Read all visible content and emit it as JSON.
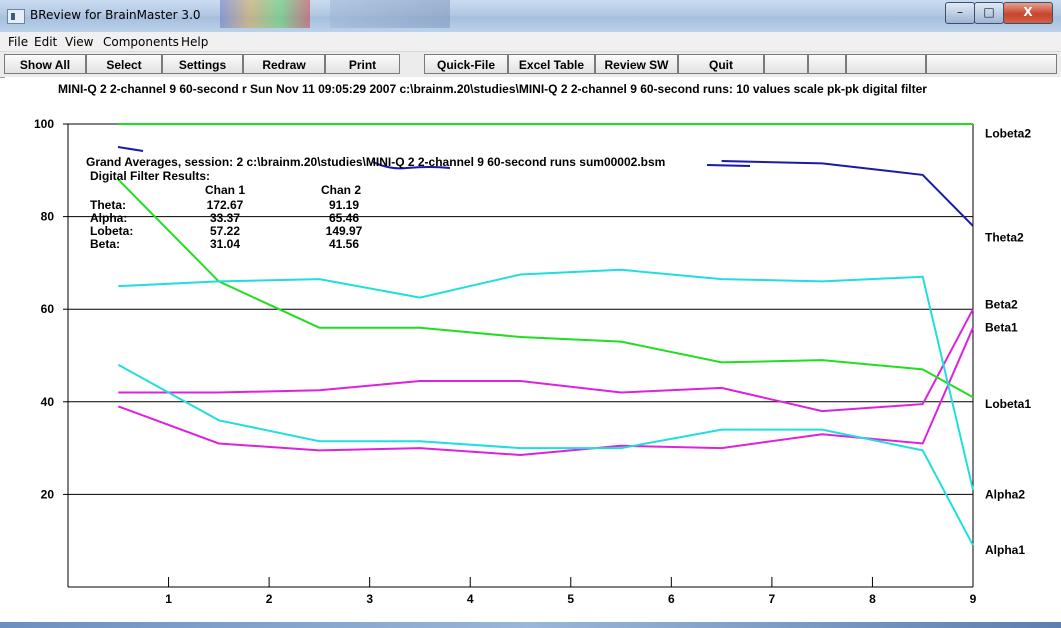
{
  "window": {
    "title": "BReview for BrainMaster 3.0",
    "buttons": {
      "minimize": "–",
      "maximize": "□",
      "close": "X"
    }
  },
  "menu": [
    "File",
    "Edit",
    "View",
    "Components",
    "Help"
  ],
  "toolbar": [
    "Show All",
    "Select",
    "Settings",
    "Redraw",
    "Print",
    "Quick-File",
    "Excel Table",
    "Review SW",
    "Quit",
    "",
    "",
    "",
    ""
  ],
  "header": {
    "text": "MINI-Q 2 2-channel 9 60-second r Sun Nov 11 09:05:29 2007    c:\\brainm.20\\studies\\MINI-Q 2 2-channel 9 60-second runs: 10 values scale pk-pk digital filter"
  },
  "info_box": {
    "line1": "Grand Averages, session: 2 c:\\brainm.20\\studies\\MINI-Q 2 2-channel 9 60-second runs sum00002.bsm",
    "line2": "Digital Filter Results:",
    "col_headers": [
      "Chan 1",
      "Chan 2"
    ],
    "rows": [
      {
        "label": "Theta:",
        "c1": "172.67",
        "c2": "91.19"
      },
      {
        "label": "Alpha:",
        "c1": "33.37",
        "c2": "65.46"
      },
      {
        "label": "Lobeta:",
        "c1": "57.22",
        "c2": "149.97"
      },
      {
        "label": "Beta:",
        "c1": "31.04",
        "c2": "41.56"
      }
    ]
  },
  "colors": {
    "green": "#22dd22",
    "blue": "#1a1aaa",
    "cyan": "#22dddd",
    "magenta": "#dd22dd",
    "grid": "#000000"
  },
  "chart_data": {
    "type": "line",
    "xlim": [
      0,
      9
    ],
    "ylim": [
      0,
      100
    ],
    "x_ticks": [
      "1",
      "2",
      "3",
      "4",
      "5",
      "6",
      "7",
      "8",
      "9"
    ],
    "y_ticks": [
      "20",
      "40",
      "60",
      "80",
      "100"
    ],
    "grid": "horizontal",
    "series": [
      {
        "name": "Lobeta2",
        "color": "#22dd22",
        "x": [
          0.5,
          1.5,
          2.5,
          3.5,
          4.5,
          5.5,
          6.5,
          7.5,
          8.5,
          9
        ],
        "y": [
          100,
          100,
          100,
          100,
          100,
          100,
          100,
          100,
          100,
          100
        ]
      },
      {
        "name": "Theta2",
        "color": "#1a1aaa",
        "x": [
          6.5,
          7.5,
          8.5,
          9
        ],
        "y": [
          92,
          91.5,
          89,
          78
        ]
      },
      {
        "name": "Beta2",
        "color": "#dd22dd",
        "x": [
          0.5,
          1.5,
          2.5,
          3.5,
          4.5,
          5.5,
          6.5,
          7.5,
          8.5,
          9
        ],
        "y": [
          42,
          42,
          42.5,
          44.5,
          44.5,
          42,
          43,
          38,
          39.5,
          60
        ]
      },
      {
        "name": "Beta1",
        "color": "#dd22dd",
        "x": [
          0.5,
          1.5,
          2.5,
          3.5,
          4.5,
          5.5,
          6.5,
          7.5,
          8.5,
          9
        ],
        "y": [
          39,
          31,
          29.5,
          30,
          28.5,
          30.5,
          30,
          33,
          31,
          56
        ]
      },
      {
        "name": "Lobeta1",
        "color": "#22dd22",
        "x": [
          0.5,
          1.5,
          2.5,
          3.5,
          4.5,
          5.5,
          6.5,
          7.5,
          8.5,
          9
        ],
        "y": [
          88,
          66,
          56,
          56,
          54,
          53,
          48.5,
          49,
          47,
          41
        ]
      },
      {
        "name": "Alpha2",
        "color": "#22dddd",
        "x": [
          0.5,
          1.5,
          2.5,
          3.5,
          4.5,
          5.5,
          6.5,
          7.5,
          8.5,
          9
        ],
        "y": [
          65,
          66,
          66.5,
          62.5,
          67.5,
          68.5,
          66.5,
          66,
          67,
          21
        ]
      },
      {
        "name": "Alpha1",
        "color": "#22dddd",
        "x": [
          0.5,
          1.5,
          2.5,
          3.5,
          4.5,
          5.5,
          6.5,
          7.5,
          8.5,
          9
        ],
        "y": [
          48,
          36,
          31.5,
          31.5,
          30,
          30,
          34,
          34,
          29.5,
          9
        ]
      }
    ],
    "right_labels": [
      {
        "name": "Lobeta2",
        "y": 98
      },
      {
        "name": "Theta2",
        "y": 75.5
      },
      {
        "name": "Beta2",
        "y": 61
      },
      {
        "name": "Beta1",
        "y": 56
      },
      {
        "name": "Lobeta1",
        "y": 39.5
      },
      {
        "name": "Alpha2",
        "y": 20
      },
      {
        "name": "Alpha1",
        "y": 8
      }
    ]
  }
}
